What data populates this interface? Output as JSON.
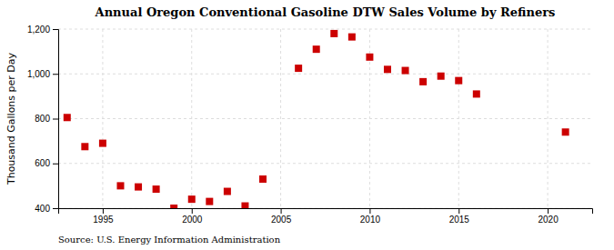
{
  "chart_data": {
    "type": "scatter",
    "title": "Annual Oregon Conventional Gasoline DTW Sales Volume by Refiners",
    "ylabel": "Thousand Gallons per Day",
    "annotations": [
      "Source: U.S. Energy Information Administration"
    ],
    "color": "#cc0000",
    "marker": "square",
    "grid": true,
    "xlim": [
      1992.5,
      2022.5
    ],
    "ylim": [
      400,
      1200
    ],
    "xticks": [
      1995,
      2000,
      2005,
      2010,
      2015,
      2020
    ],
    "yticks": [
      400,
      600,
      800,
      {
        "value": 1000,
        "label": "1,000"
      },
      {
        "value": 1200,
        "label": "1,200"
      }
    ],
    "x": [
      1993,
      1994,
      1995,
      1996,
      1997,
      1998,
      1999,
      2000,
      2001,
      2002,
      2003,
      2004,
      2006,
      2007,
      2008,
      2009,
      2010,
      2011,
      2012,
      2013,
      2014,
      2015,
      2016,
      2021
    ],
    "values": [
      805,
      675,
      690,
      500,
      495,
      485,
      400,
      440,
      430,
      475,
      410,
      530,
      1025,
      1110,
      1180,
      1165,
      1075,
      1020,
      1015,
      965,
      990,
      970,
      910,
      740
    ]
  }
}
